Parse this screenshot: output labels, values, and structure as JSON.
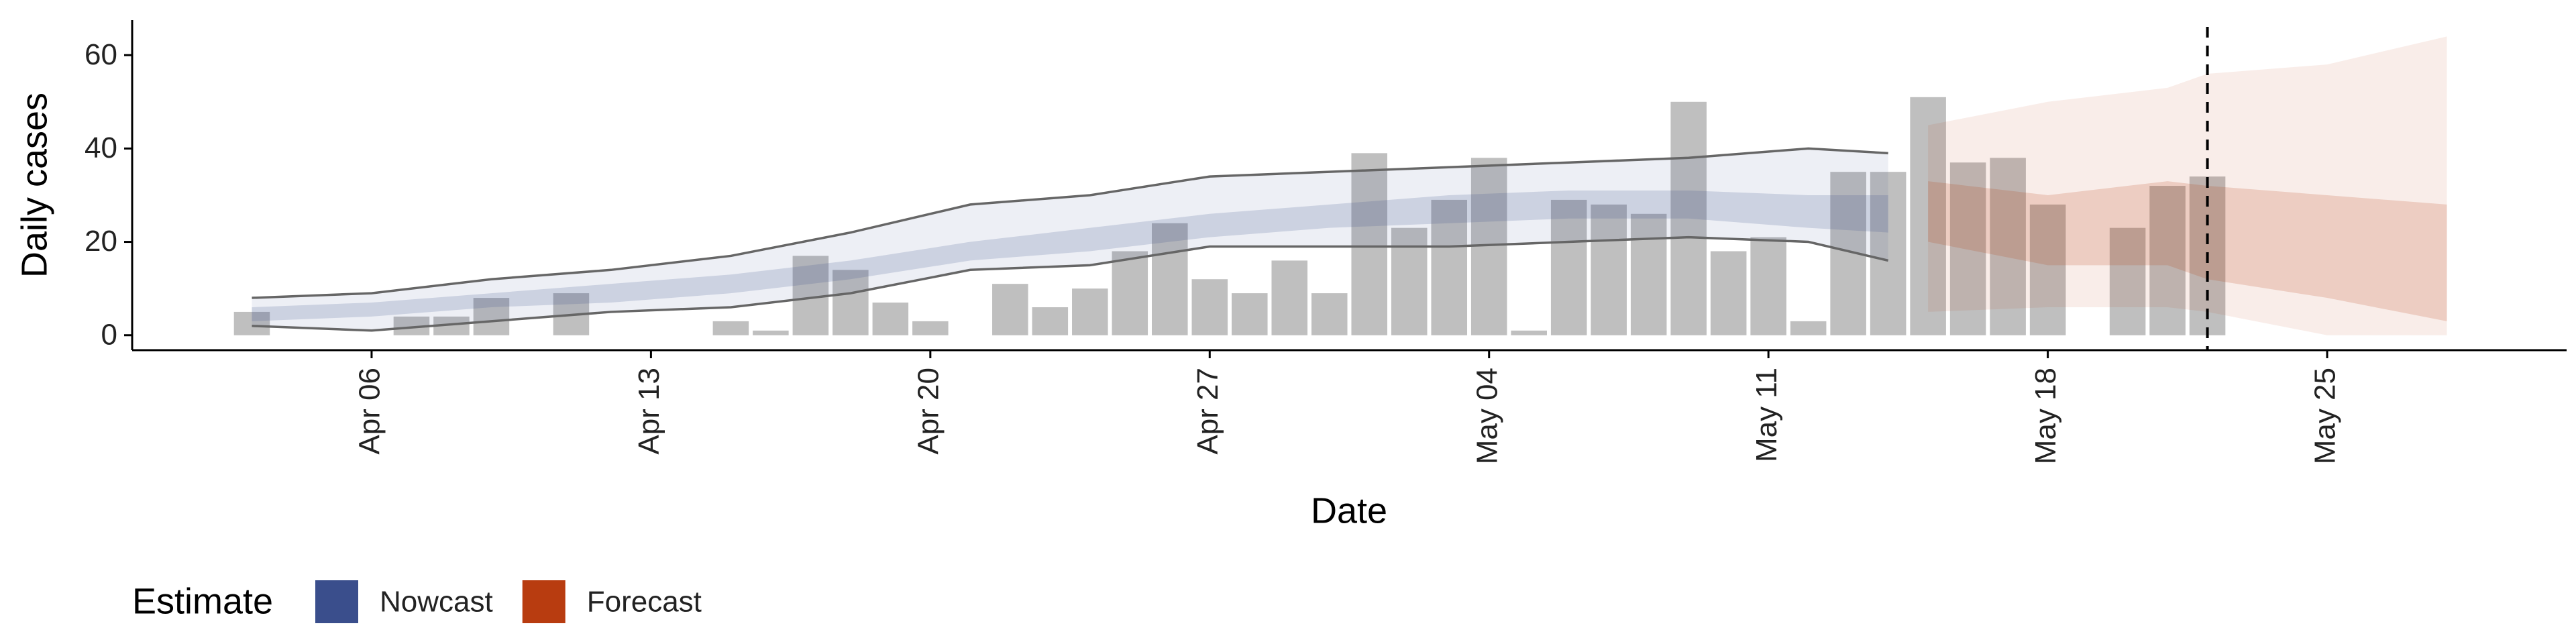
{
  "chart_data": {
    "type": "nowcast",
    "x_label": "Date",
    "y_label": "Daily cases",
    "legend_title": "Estimate",
    "xlim": [
      "Mar 31",
      "May 31"
    ],
    "xticks": [
      "Apr 06",
      "Apr 13",
      "Apr 20",
      "Apr 27",
      "May 04",
      "May 11",
      "May 18",
      "May 25"
    ],
    "ylim": [
      -3.2,
      67.5
    ],
    "yticks": [
      0,
      20,
      40,
      60
    ],
    "vline": "May 22",
    "bars": {
      "color": "#a9a9a9",
      "x": [
        "Apr 03",
        "Apr 07",
        "Apr 08",
        "Apr 09",
        "Apr 11",
        "Apr 15",
        "Apr 16",
        "Apr 17",
        "Apr 18",
        "Apr 19",
        "Apr 20",
        "Apr 22",
        "Apr 23",
        "Apr 24",
        "Apr 25",
        "Apr 26",
        "Apr 27",
        "Apr 28",
        "Apr 29",
        "Apr 30",
        "May 01",
        "May 02",
        "May 03",
        "May 04",
        "May 05",
        "May 06",
        "May 07",
        "May 08",
        "May 09",
        "May 10",
        "May 11",
        "May 12",
        "May 13",
        "May 14",
        "May 15",
        "May 16",
        "May 17",
        "May 18",
        "May 20",
        "May 21",
        "May 22"
      ],
      "values": [
        5,
        4,
        4,
        8,
        9,
        3,
        1,
        17,
        14,
        7,
        3,
        11,
        6,
        10,
        18,
        24,
        12,
        9,
        16,
        9,
        39,
        23,
        29,
        38,
        1,
        29,
        28,
        26,
        50,
        18,
        21,
        3,
        35,
        35,
        51,
        37,
        38,
        28,
        23,
        32,
        34
      ]
    },
    "series": [
      {
        "name": "Nowcast",
        "color": "#3a4e8c",
        "x": [
          "Apr 03",
          "Apr 06",
          "Apr 09",
          "Apr 12",
          "Apr 15",
          "Apr 18",
          "Apr 21",
          "Apr 24",
          "Apr 27",
          "Apr 30",
          "May 03",
          "May 06",
          "May 09",
          "May 12",
          "May 14"
        ],
        "upper_90": [
          8,
          9,
          12,
          14,
          17,
          22,
          28,
          30,
          34,
          35,
          36,
          37,
          38,
          40,
          39
        ],
        "lower_90": [
          2,
          1,
          3,
          5,
          6,
          9,
          14,
          15,
          19,
          19,
          19,
          20,
          21,
          20,
          16
        ],
        "upper_50": [
          6,
          7,
          9,
          11,
          13,
          16,
          20,
          23,
          26,
          28,
          30,
          31,
          31,
          30,
          30
        ],
        "lower_50": [
          3,
          4,
          6,
          7,
          9,
          12,
          16,
          18,
          21,
          23,
          24,
          25,
          25,
          23,
          22
        ]
      },
      {
        "name": "Forecast",
        "color": "#b83c10",
        "x": [
          "May 15",
          "May 18",
          "May 21",
          "May 22",
          "May 25",
          "May 28"
        ],
        "upper_90": [
          45,
          50,
          53,
          56,
          58,
          64
        ],
        "lower_90": [
          5,
          6,
          6,
          5,
          0,
          0
        ],
        "upper_50": [
          33,
          30,
          33,
          32,
          30,
          28
        ],
        "lower_50": [
          20,
          15,
          15,
          12,
          8,
          3
        ]
      }
    ]
  }
}
